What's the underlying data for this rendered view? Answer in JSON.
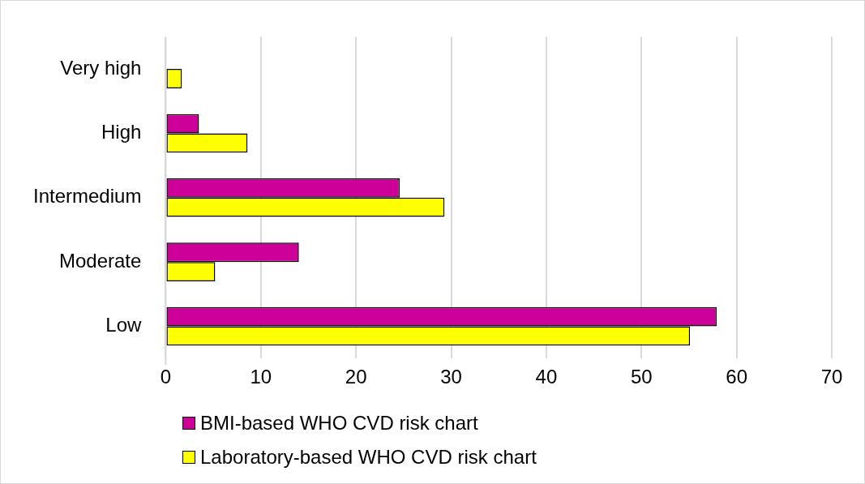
{
  "chart_data": {
    "type": "bar",
    "orientation": "horizontal",
    "categories": [
      "Very high",
      "High",
      "Intermedium",
      "Moderate",
      "Low"
    ],
    "series": [
      {
        "name": "BMI-based WHO CVD risk chart",
        "color": "#cc0099",
        "values": [
          null,
          3.5,
          24.6,
          14.0,
          57.9
        ]
      },
      {
        "name": "Laboratory-based WHO CVD risk chart",
        "color": "#ffff00",
        "values": [
          1.7,
          8.6,
          29.3,
          5.2,
          55.1
        ]
      }
    ],
    "xlim": [
      0,
      70
    ],
    "xticks": [
      0,
      10,
      20,
      30,
      40,
      50,
      60,
      70
    ],
    "grid": "x",
    "legend": "bottom"
  }
}
